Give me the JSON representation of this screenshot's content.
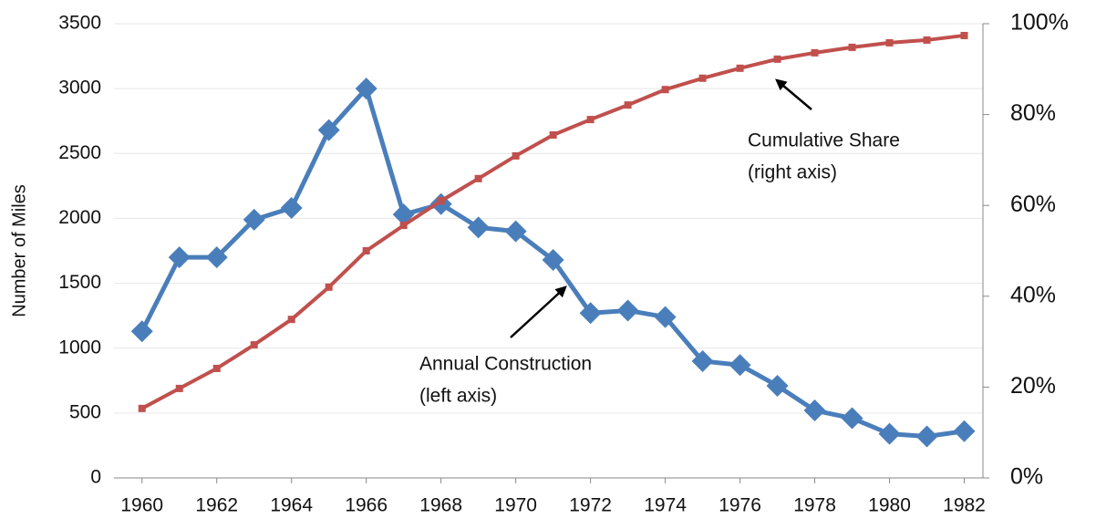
{
  "chart_data": {
    "type": "line",
    "y_label": "Number of Miles",
    "x": [
      1960,
      1961,
      1962,
      1963,
      1964,
      1965,
      1966,
      1967,
      1968,
      1969,
      1970,
      1971,
      1972,
      1973,
      1974,
      1975,
      1976,
      1977,
      1978,
      1979,
      1980,
      1981,
      1982
    ],
    "xlim": [
      1959.25,
      1982.5
    ],
    "xticks": [
      1960,
      1962,
      1964,
      1966,
      1968,
      1970,
      1972,
      1974,
      1976,
      1978,
      1980,
      1982
    ],
    "ylim": [
      0,
      3500
    ],
    "yticks": [
      0,
      500,
      1000,
      1500,
      2000,
      2500,
      3000,
      3500
    ],
    "y2lim": [
      0,
      100
    ],
    "y2ticks": [
      {
        "value": 0,
        "label": "0%"
      },
      {
        "value": 20,
        "label": "20%"
      },
      {
        "value": 40,
        "label": "40%"
      },
      {
        "value": 60,
        "label": "60%"
      },
      {
        "value": 80,
        "label": "80%"
      },
      {
        "value": 100,
        "label": "100%"
      }
    ],
    "grid": true,
    "series": [
      {
        "name": "Annual Construction",
        "color": "#4a7ebb",
        "axis": "y",
        "marker": "diamond",
        "values": [
          1130,
          1700,
          1700,
          1990,
          2080,
          2680,
          3000,
          2030,
          2110,
          1930,
          1900,
          1680,
          1270,
          1290,
          1240,
          900,
          870,
          710,
          520,
          460,
          340,
          320,
          360
        ]
      },
      {
        "name": "Cumulative Share",
        "color": "#c0504d",
        "axis": "y2",
        "marker": "square",
        "values": [
          15.3,
          19.7,
          24.1,
          29.3,
          34.9,
          42,
          50,
          55.6,
          61,
          65.9,
          70.9,
          75.5,
          78.9,
          82.1,
          85.5,
          88,
          90.2,
          92.2,
          93.6,
          94.8,
          95.8,
          96.4,
          97.4
        ]
      }
    ],
    "annotations": [
      [
        "Cumulative Share",
        "(right axis)"
      ],
      [
        "Annual Construction",
        "(left axis)"
      ]
    ]
  }
}
